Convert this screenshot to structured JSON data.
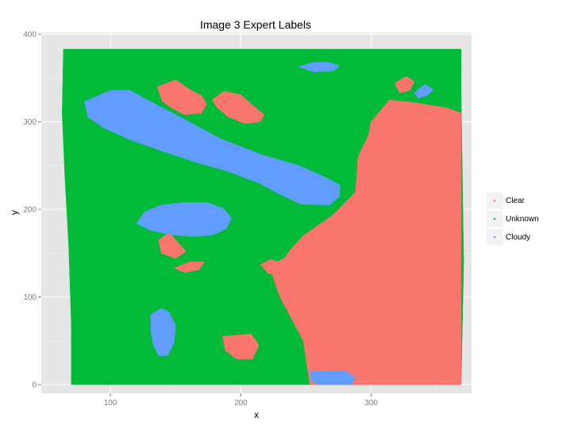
{
  "chart_data": {
    "type": "scatter",
    "title": "Image 3 Expert Labels",
    "xlabel": "x",
    "ylabel": "y",
    "xlim": [
      47,
      377
    ],
    "ylim": [
      -10,
      402
    ],
    "x_ticks": [
      100,
      200,
      300
    ],
    "y_ticks": [
      0,
      100,
      200,
      300,
      400
    ],
    "x_tick_labels": [
      "100",
      "200",
      "300"
    ],
    "y_tick_labels": [
      "0",
      "100",
      "200",
      "300",
      "400"
    ],
    "grid": true,
    "legend_position": "right",
    "legend": [
      {
        "label": "Clear",
        "color": "#f8766d"
      },
      {
        "label": "Unknown",
        "color": "#00ba38"
      },
      {
        "label": "Cloudy",
        "color": "#619cff"
      }
    ],
    "regions": [
      {
        "label": "Unknown",
        "polygon": [
          [
            64,
            383
          ],
          [
            369,
            383
          ],
          [
            369,
            330
          ],
          [
            371,
            140
          ],
          [
            369,
            0
          ],
          [
            70,
            0
          ],
          [
            70,
            70
          ],
          [
            68,
            160
          ],
          [
            65,
            240
          ],
          [
            63,
            310
          ]
        ]
      },
      {
        "label": "Clear",
        "polygon": [
          [
            300,
            300
          ],
          [
            314,
            325
          ],
          [
            333,
            322
          ],
          [
            358,
            316
          ],
          [
            369,
            310
          ],
          [
            369,
            0
          ],
          [
            253,
            0
          ],
          [
            248,
            50
          ],
          [
            230,
            100
          ],
          [
            222,
            135
          ],
          [
            234,
            145
          ],
          [
            238,
            154
          ],
          [
            248,
            170
          ],
          [
            271,
            194
          ],
          [
            288,
            220
          ],
          [
            290,
            260
          ],
          [
            298,
            285
          ]
        ]
      },
      {
        "label": "Clear",
        "polygon": [
          [
            318,
            344
          ],
          [
            327,
            352
          ],
          [
            333,
            346
          ],
          [
            330,
            336
          ],
          [
            322,
            333
          ]
        ]
      },
      {
        "label": "Clear",
        "polygon": [
          [
            186,
            55
          ],
          [
            208,
            58
          ],
          [
            214,
            45
          ],
          [
            209,
            29
          ],
          [
            197,
            29
          ],
          [
            188,
            39
          ]
        ]
      },
      {
        "label": "Clear",
        "polygon": [
          [
            136,
            340
          ],
          [
            150,
            348
          ],
          [
            162,
            336
          ],
          [
            170,
            330
          ],
          [
            174,
            320
          ],
          [
            170,
            310
          ],
          [
            157,
            308
          ],
          [
            148,
            315
          ],
          [
            140,
            323
          ]
        ]
      },
      {
        "label": "Clear",
        "polygon": [
          [
            178,
            325
          ],
          [
            187,
            335
          ],
          [
            200,
            331
          ],
          [
            210,
            318
          ],
          [
            218,
            308
          ],
          [
            215,
            300
          ],
          [
            203,
            298
          ],
          [
            190,
            306
          ],
          [
            182,
            316
          ]
        ]
      },
      {
        "label": "Clear",
        "polygon": [
          [
            137,
            165
          ],
          [
            145,
            174
          ],
          [
            152,
            162
          ],
          [
            158,
            152
          ],
          [
            150,
            144
          ],
          [
            139,
            150
          ]
        ]
      },
      {
        "label": "Clear",
        "polygon": [
          [
            149,
            133
          ],
          [
            161,
            140
          ],
          [
            172,
            140
          ],
          [
            168,
            131
          ],
          [
            157,
            128
          ]
        ]
      },
      {
        "label": "Clear",
        "polygon": [
          [
            215,
            137
          ],
          [
            223,
            143
          ],
          [
            234,
            137
          ],
          [
            239,
            131
          ],
          [
            233,
            125
          ],
          [
            221,
            127
          ]
        ]
      },
      {
        "label": "Clear",
        "polygon": [
          [
            251,
            152
          ],
          [
            259,
            163
          ],
          [
            266,
            158
          ],
          [
            262,
            148
          ],
          [
            254,
            146
          ]
        ]
      },
      {
        "label": "Cloudy",
        "polygon": [
          [
            80,
            323
          ],
          [
            100,
            336
          ],
          [
            115,
            336
          ],
          [
            131,
            323
          ],
          [
            158,
            302
          ],
          [
            184,
            281
          ],
          [
            217,
            262
          ],
          [
            245,
            250
          ],
          [
            263,
            238
          ],
          [
            276,
            228
          ],
          [
            276,
            215
          ],
          [
            268,
            205
          ],
          [
            246,
            206
          ],
          [
            229,
            218
          ],
          [
            214,
            230
          ],
          [
            191,
            243
          ],
          [
            165,
            254
          ],
          [
            139,
            267
          ],
          [
            116,
            279
          ],
          [
            95,
            293
          ],
          [
            83,
            305
          ]
        ]
      },
      {
        "label": "Cloudy",
        "polygon": [
          [
            126,
            197
          ],
          [
            139,
            205
          ],
          [
            157,
            208
          ],
          [
            174,
            208
          ],
          [
            187,
            201
          ],
          [
            193,
            190
          ],
          [
            189,
            178
          ],
          [
            179,
            171
          ],
          [
            165,
            169
          ],
          [
            147,
            171
          ],
          [
            131,
            176
          ],
          [
            120,
            184
          ]
        ]
      },
      {
        "label": "Cloudy",
        "polygon": [
          [
            131,
            80
          ],
          [
            139,
            87
          ],
          [
            145,
            83
          ],
          [
            150,
            68
          ],
          [
            149,
            48
          ],
          [
            144,
            33
          ],
          [
            137,
            33
          ],
          [
            133,
            45
          ],
          [
            131,
            60
          ]
        ]
      },
      {
        "label": "Cloudy",
        "polygon": [
          [
            253,
            15
          ],
          [
            262,
            15
          ],
          [
            281,
            15
          ],
          [
            288,
            8
          ],
          [
            285,
            0
          ],
          [
            260,
            0
          ],
          [
            254,
            4
          ]
        ]
      },
      {
        "label": "Cloudy",
        "polygon": [
          [
            244,
            363
          ],
          [
            256,
            368
          ],
          [
            267,
            368
          ],
          [
            276,
            364
          ],
          [
            271,
            358
          ],
          [
            256,
            357
          ]
        ]
      },
      {
        "label": "Cloudy",
        "polygon": [
          [
            333,
            333
          ],
          [
            341,
            343
          ],
          [
            348,
            337
          ],
          [
            343,
            330
          ],
          [
            336,
            327
          ]
        ]
      }
    ]
  }
}
